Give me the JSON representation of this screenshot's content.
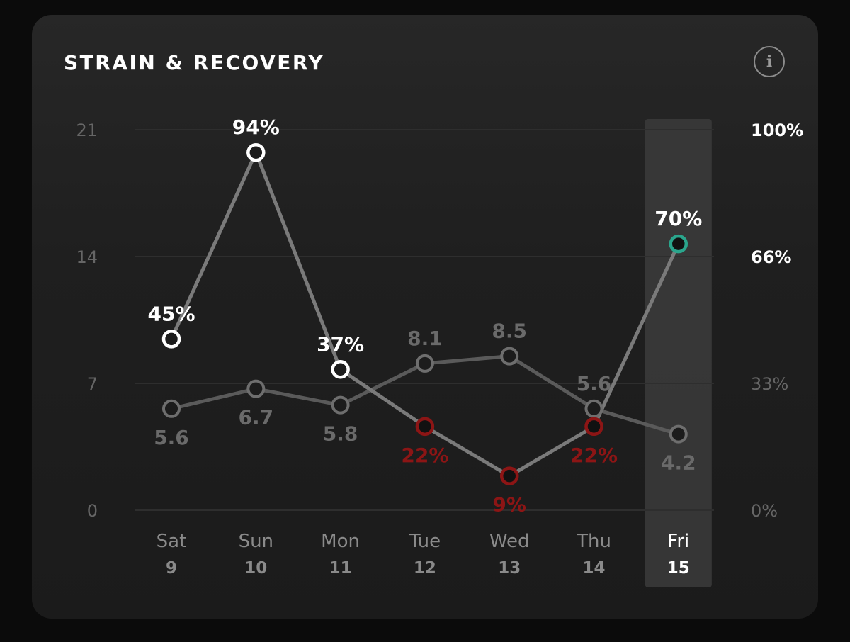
{
  "card": {
    "title": "STRAIN & RECOVERY",
    "info_icon": "info-icon",
    "info_glyph": "i"
  },
  "chart_data": {
    "type": "line",
    "title": "STRAIN & RECOVERY",
    "categories": [
      {
        "day": "Sat",
        "date": "9"
      },
      {
        "day": "Sun",
        "date": "10"
      },
      {
        "day": "Mon",
        "date": "11"
      },
      {
        "day": "Tue",
        "date": "12"
      },
      {
        "day": "Wed",
        "date": "13"
      },
      {
        "day": "Thu",
        "date": "14"
      },
      {
        "day": "Fri",
        "date": "15"
      }
    ],
    "highlighted_category": 6,
    "left_axis": {
      "ticks": [
        0,
        7,
        14,
        21
      ],
      "ylim": [
        0,
        21
      ]
    },
    "right_axis": {
      "ticks": [
        "0%",
        "33%",
        "66%",
        "100%"
      ],
      "ylim": [
        0,
        100
      ]
    },
    "series": [
      {
        "values": [
          5.6,
          6.7,
          5.8,
          8.1,
          8.5,
          5.6,
          4.2
        ],
        "labels": [
          "5.6",
          "6.7",
          "5.8",
          "8.1",
          "8.5",
          "5.6",
          "4.2"
        ],
        "axis": "left"
      },
      {
        "values": [
          45,
          94,
          37,
          22,
          9,
          22,
          70
        ],
        "labels": [
          "45%",
          "94%",
          "37%",
          "22%",
          "9%",
          "22%",
          "70%"
        ],
        "axis": "right"
      }
    ],
    "colors": {
      "grid": "#2e2e2e",
      "strain_line": "#5a5a5a",
      "strain_label": "#6a6a6a",
      "recovery_line": "#7a7a7a",
      "recovery_high": "#ffffff",
      "recovery_low": "#8c1515",
      "recovery_selected": "#2aa58c",
      "highlight_band": "#3a3a3a"
    }
  }
}
